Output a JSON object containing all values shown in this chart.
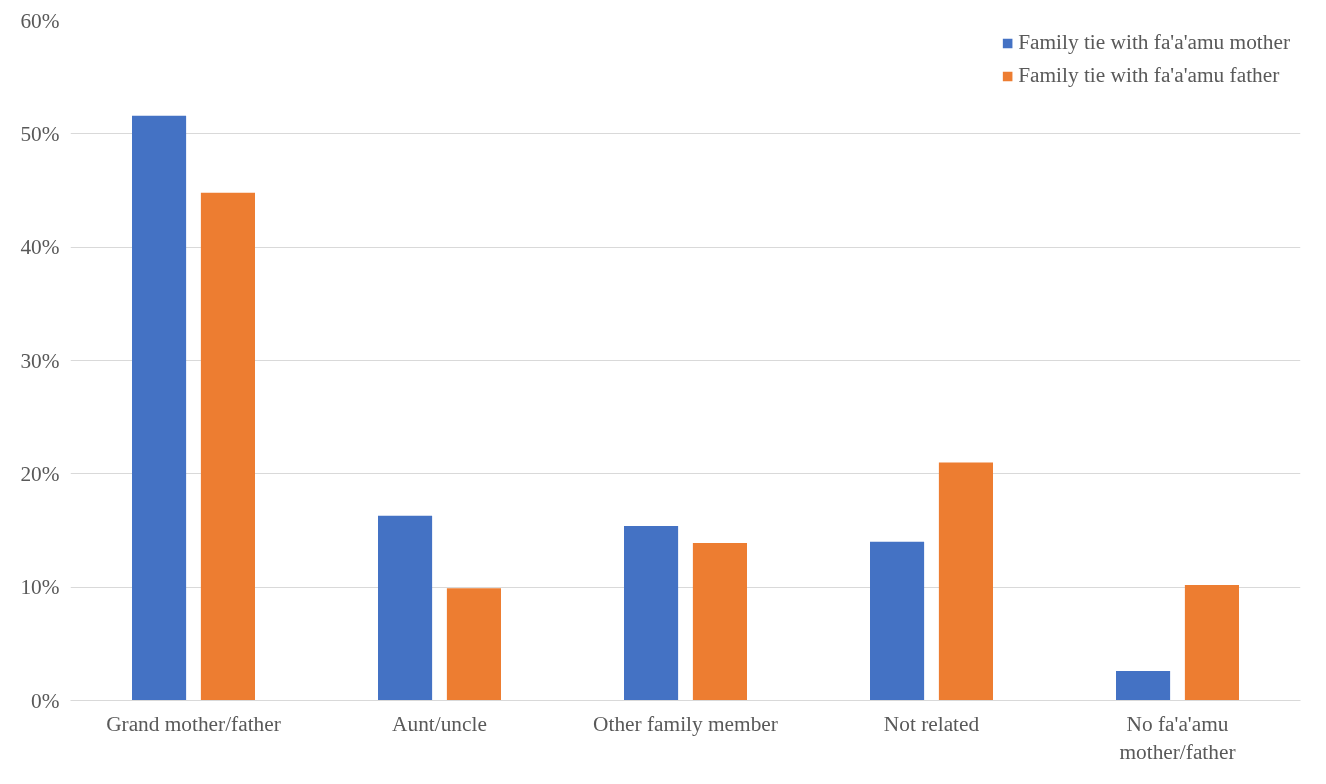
{
  "chart_data": {
    "type": "bar",
    "categories": [
      "Grand mother/father",
      "Aunt/uncle",
      "Other family member",
      "Not related",
      "No fa'a'amu mother/father"
    ],
    "series": [
      {
        "name": "Family tie with fa'a'amu mother",
        "color": "#4472c4",
        "values": [
          51.6,
          16.3,
          15.4,
          14.0,
          2.6
        ]
      },
      {
        "name": "Family tie with fa'a'amu father",
        "color": "#ed7d31",
        "values": [
          44.8,
          9.9,
          13.9,
          21.0,
          10.2
        ]
      }
    ],
    "ylim": [
      0,
      60
    ],
    "yticks": [
      {
        "value": 0,
        "label": "0%"
      },
      {
        "value": 10,
        "label": "10%"
      },
      {
        "value": 20,
        "label": "20%"
      },
      {
        "value": 30,
        "label": "30%"
      },
      {
        "value": 40,
        "label": "40%"
      },
      {
        "value": 50,
        "label": "50%"
      },
      {
        "value": 60,
        "label": "60%"
      }
    ],
    "grid": "y",
    "legend": "top right"
  }
}
